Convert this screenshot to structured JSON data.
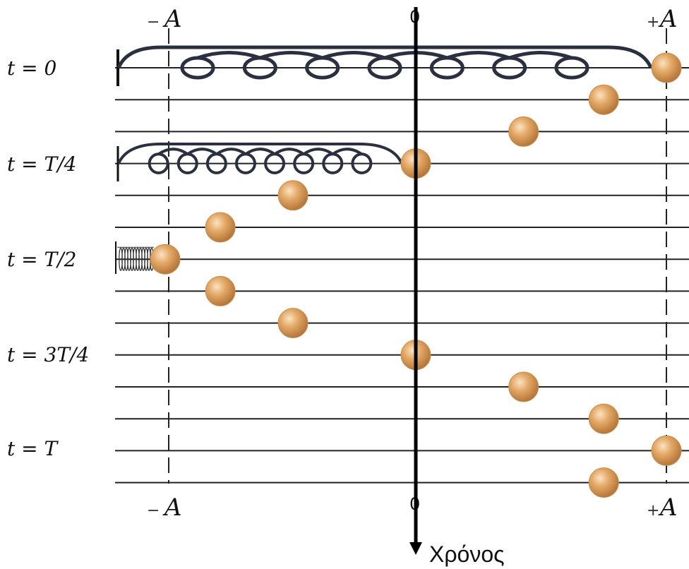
{
  "time_labels": [
    "t = 0",
    "t = T/4",
    "t = T/2",
    "t = 3T/4",
    "t = T"
  ],
  "axis": {
    "left_label": "A",
    "right_label": "A",
    "left_sign": "−",
    "right_sign": "+",
    "zero_label": "0",
    "time_label": "Χρόνος"
  },
  "ball_positions": [
    1.0,
    0.75,
    0.43,
    0.0,
    -0.49,
    -0.78,
    -1.0,
    -0.78,
    -0.49,
    0.0,
    0.43,
    0.75,
    1.0,
    0.75
  ],
  "colors": {
    "ball": "#e0a460",
    "ball_dark": "#b97a34",
    "spring": "#2b3040",
    "line": "#222222"
  }
}
